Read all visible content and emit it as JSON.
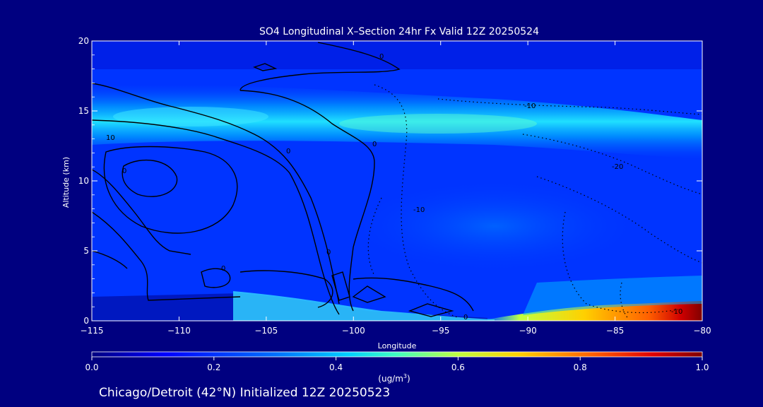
{
  "chart_data": {
    "type": "heatmap",
    "title": "SO4 Longitudinal X–Section 24hr  Fx Valid 12Z 20250524",
    "xlabel": "Longitude",
    "ylabel": "Altitude (km)",
    "xlim": [
      -115,
      -80
    ],
    "ylim": [
      0,
      20
    ],
    "x_ticks": [
      -115,
      -110,
      -105,
      -100,
      -95,
      -90,
      -85,
      -80
    ],
    "x_tick_labels": [
      "−115",
      "−110",
      "−105",
      "−100",
      "−95",
      "−90",
      "−85",
      "−80"
    ],
    "y_ticks": [
      0,
      5,
      10,
      15,
      20
    ],
    "y_tick_labels": [
      "0",
      "5",
      "10",
      "15",
      "20"
    ],
    "colorbar": {
      "min": 0.0,
      "max": 1.0,
      "ticks": [
        0.0,
        0.2,
        0.4,
        0.6,
        0.8,
        1.0
      ],
      "tick_labels": [
        "0.0",
        "0.2",
        "0.4",
        "0.6",
        "0.8",
        "1.0"
      ],
      "units_text": "(ug/m",
      "units_sup": "3",
      "units_close": ")",
      "colormap": [
        "#000080",
        "#0000ff",
        "#0080ff",
        "#00ffff",
        "#80ff80",
        "#ffff00",
        "#ff8000",
        "#ff0000",
        "#800000"
      ]
    },
    "concentration_features": [
      {
        "name": "upper-band",
        "lon": [
          -115,
          -80
        ],
        "alt_center": 14.2,
        "peak": 0.42
      },
      {
        "name": "surface-east",
        "lon": [
          -92,
          -80
        ],
        "alt_center": 0.5,
        "peak": 1.0
      },
      {
        "name": "surface-west",
        "lon": [
          -105,
          -93
        ],
        "alt_center": 1.0,
        "peak": 0.5
      }
    ],
    "contour_labels": [
      "-10",
      "-20",
      "-10",
      "-10",
      "10",
      "0",
      "0",
      "0",
      "0",
      "0",
      "0",
      "0"
    ],
    "grid": false,
    "legend": "none"
  },
  "footer": {
    "caption": "Chicago/Detroit (42°N) Initialized 12Z 20250523"
  }
}
